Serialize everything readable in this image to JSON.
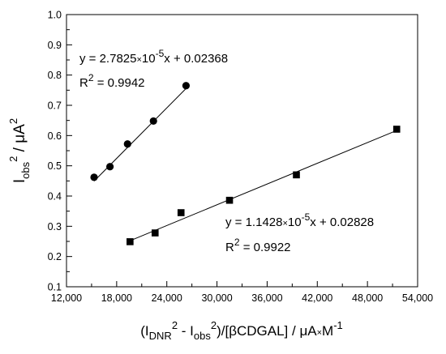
{
  "chart_data": {
    "type": "scatter",
    "xlabel_parts": {
      "lead": "(I",
      "sub1": "DNR",
      "sup1": "2",
      "mid": " - I",
      "sub2": "obs",
      "sup2": "2",
      "tail": ")/[βCDGAL] / μA",
      "times": "×",
      "unit": "M",
      "sup3": "-1"
    },
    "ylabel_parts": {
      "lead": "I",
      "sub": "obs",
      "sup": "2",
      "tail": " / μA",
      "sup2": "2"
    },
    "xlim": [
      12000,
      54000
    ],
    "ylim": [
      0.1,
      1.0
    ],
    "xticks": [
      12000,
      18000,
      24000,
      30000,
      36000,
      42000,
      48000,
      54000
    ],
    "xtick_labels": [
      "12,000",
      "18,000",
      "24,000",
      "30,000",
      "36,000",
      "42,000",
      "48,000",
      "54,000"
    ],
    "yticks": [
      0.1,
      0.2,
      0.3,
      0.4,
      0.5,
      0.6,
      0.7,
      0.8,
      0.9,
      1.0
    ],
    "ytick_labels": [
      "0.1",
      "0.2",
      "0.3",
      "0.4",
      "0.5",
      "0.6",
      "0.7",
      "0.8",
      "0.9",
      "1.0"
    ],
    "grid": false,
    "series": [
      {
        "marker": "circle",
        "x": [
          15300,
          17200,
          19300,
          22400,
          26300
        ],
        "y": [
          0.462,
          0.497,
          0.572,
          0.648,
          0.765
        ],
        "fit": {
          "slope": 2.7825e-05,
          "intercept": 0.02368
        },
        "equation_parts": {
          "lead": "y = 2.7825",
          "times": "×",
          "base": "10",
          "exp": "-5",
          "tail": "x + 0.02368"
        },
        "r2_parts": {
          "lead": "R",
          "sup": "2",
          "tail": " = 0.9942"
        }
      },
      {
        "marker": "square",
        "x": [
          19600,
          22600,
          25700,
          31500,
          39500,
          51500
        ],
        "y": [
          0.249,
          0.278,
          0.345,
          0.386,
          0.47,
          0.621
        ],
        "fit": {
          "slope": 1.1428e-05,
          "intercept": 0.02828
        },
        "equation_parts": {
          "lead": "y = 1.1428",
          "times": "×",
          "base": "10",
          "exp": "-5",
          "tail": "x + 0.02828"
        },
        "r2_parts": {
          "lead": "R",
          "sup": "2",
          "tail": " = 0.9922"
        }
      }
    ],
    "colors": {
      "axis": "#000000",
      "ylabel": "#1f6b3a",
      "markers": "#000000"
    }
  }
}
